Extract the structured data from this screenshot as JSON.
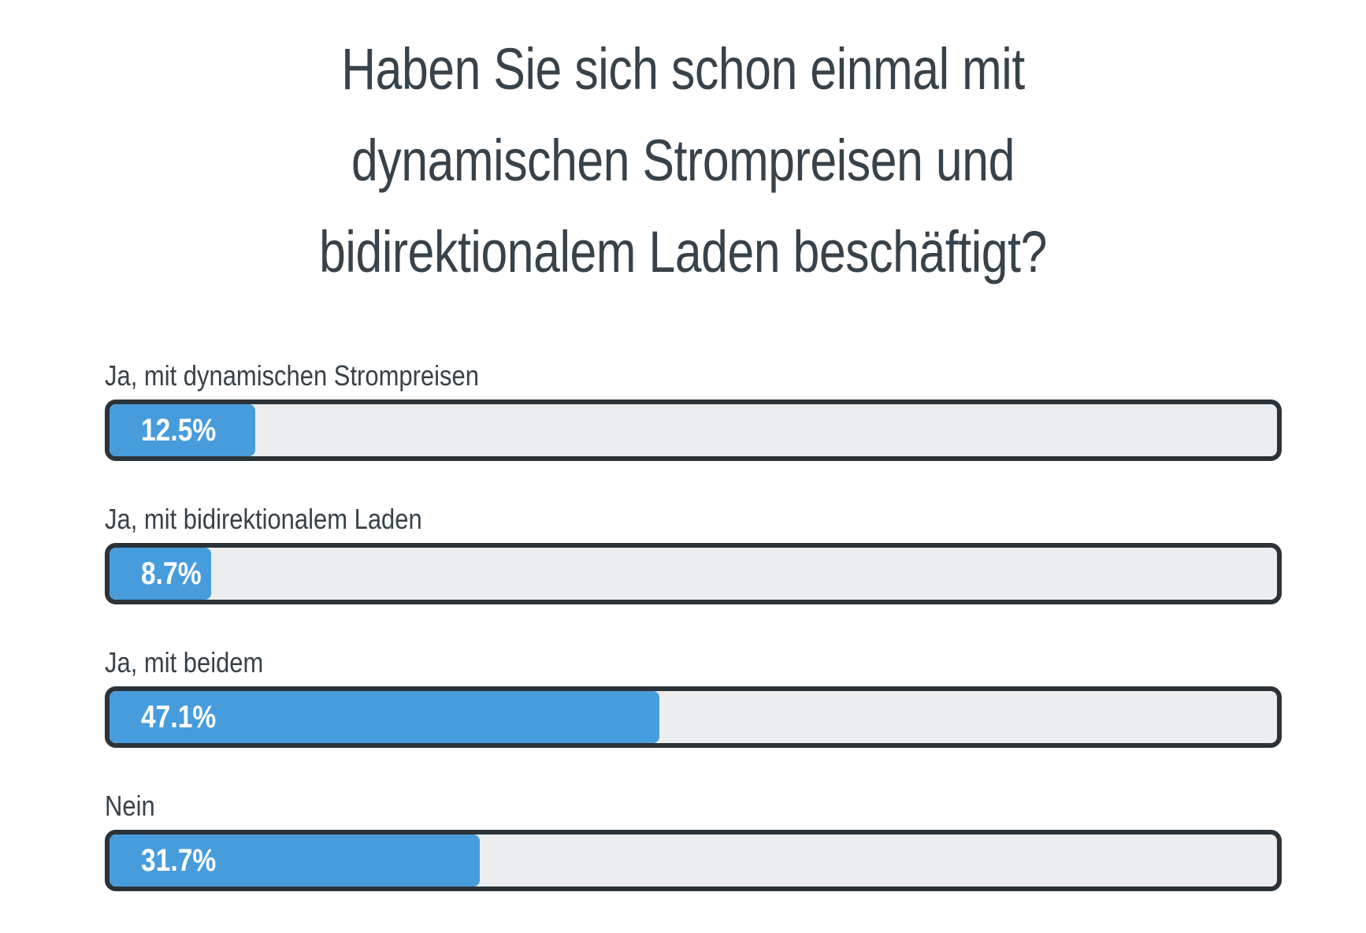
{
  "colors": {
    "fill": "#479cdc",
    "track": "#ecedee",
    "border": "#2b3339",
    "text": "#37424a"
  },
  "chart_data": {
    "type": "bar",
    "orientation": "horizontal",
    "title": "Haben Sie sich schon einmal mit dynamischen Strompreisen und bidirektionalem Laden beschäftigt?",
    "categories": [
      "Ja, mit dynamischen Strompreisen",
      "Ja, mit bidirektionalem Laden",
      "Ja, mit beidem",
      "Nein"
    ],
    "values": [
      12.5,
      8.7,
      47.1,
      31.7
    ],
    "value_labels": [
      "12.5%",
      "8.7%",
      "47.1%",
      "31.7%"
    ],
    "unit": "%",
    "xlim": [
      0,
      100
    ],
    "grid": false,
    "legend": "none"
  }
}
